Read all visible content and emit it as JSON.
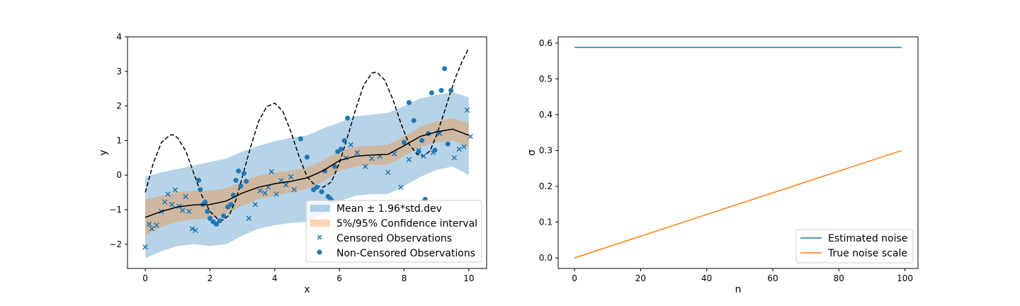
{
  "chart_data": [
    {
      "type": "scatter",
      "title": "",
      "xlabel": "x",
      "ylabel": "y",
      "xlim": [
        -0.55,
        10.55
      ],
      "ylim": [
        -2.7,
        4.0
      ],
      "xticks": [
        0,
        2,
        4,
        6,
        8,
        10
      ],
      "xtick_labels": [
        "0",
        "2",
        "4",
        "6",
        "8",
        "10"
      ],
      "yticks": [
        -2,
        -1,
        0,
        1,
        2,
        3,
        4
      ],
      "ytick_labels": [
        "−2",
        "−1",
        "0",
        "1",
        "2",
        "3",
        "4"
      ],
      "grid": false,
      "legend": {
        "position": "lower-right",
        "entries": [
          {
            "label": "Mean ± 1.96*std.dev",
            "kind": "patch",
            "color": "#1f77b4"
          },
          {
            "label": "5%/95% Confidence interval",
            "kind": "patch",
            "color": "#ff7f0e"
          },
          {
            "label": "Censored Observations",
            "kind": "x",
            "color": "#1f77b4"
          },
          {
            "label": "Non-Censored Observations",
            "kind": "dot",
            "color": "#1f77b4"
          }
        ]
      },
      "x_grid": [
        0,
        0.5,
        1,
        1.5,
        2,
        2.5,
        3,
        3.5,
        4,
        4.5,
        5,
        5.5,
        6,
        6.5,
        7,
        7.5,
        8,
        8.5,
        9,
        9.5,
        10
      ],
      "mean": [
        -1.22,
        -1.05,
        -0.92,
        -0.86,
        -0.85,
        -0.75,
        -0.52,
        -0.35,
        -0.25,
        -0.18,
        -0.08,
        0.13,
        0.42,
        0.55,
        0.58,
        0.6,
        0.85,
        1.12,
        1.25,
        1.33,
        1.15
      ],
      "band_outer_upper": [
        -0.05,
        0.08,
        0.18,
        0.28,
        0.38,
        0.48,
        0.68,
        0.85,
        0.98,
        1.08,
        1.15,
        1.35,
        1.52,
        1.7,
        1.75,
        1.8,
        2.0,
        2.22,
        2.32,
        2.4,
        2.25
      ],
      "band_outer_lower": [
        -2.4,
        -2.2,
        -2.05,
        -2.0,
        -2.05,
        -2.0,
        -1.75,
        -1.55,
        -1.45,
        -1.38,
        -1.35,
        -1.12,
        -0.75,
        -0.6,
        -0.55,
        -0.55,
        -0.32,
        -0.05,
        0.15,
        0.25,
        0.0
      ],
      "band_inner_upper": [
        -0.7,
        -0.6,
        -0.5,
        -0.45,
        -0.45,
        -0.38,
        -0.18,
        -0.02,
        0.07,
        0.13,
        0.22,
        0.43,
        0.7,
        0.82,
        0.85,
        0.88,
        1.12,
        1.4,
        1.55,
        1.65,
        1.5
      ],
      "band_inner_lower": [
        -1.75,
        -1.5,
        -1.35,
        -1.28,
        -1.25,
        -1.13,
        -0.88,
        -0.7,
        -0.58,
        -0.5,
        -0.4,
        -0.18,
        0.12,
        0.25,
        0.3,
        0.3,
        0.55,
        0.82,
        0.95,
        1.0,
        0.8
      ],
      "true_function_x": [
        0,
        0.25,
        0.5,
        0.75,
        0.85,
        1,
        1.25,
        1.5,
        1.75,
        2,
        2.25,
        2.4,
        2.6,
        2.8,
        3,
        3.25,
        3.5,
        3.75,
        4,
        4.25,
        4.5,
        4.75,
        5,
        5.25,
        5.5,
        5.75,
        6,
        6.25,
        6.5,
        6.75,
        7,
        7.15,
        7.4,
        7.65,
        7.9,
        8.15,
        8.4,
        8.6,
        8.8,
        9.0,
        9.2,
        9.4,
        9.6,
        9.8,
        10
      ],
      "true_function_y": [
        -0.5,
        0.35,
        0.95,
        1.15,
        1.17,
        1.08,
        0.7,
        0.05,
        -0.6,
        -1.05,
        -1.28,
        -1.3,
        -1.15,
        -0.72,
        -0.05,
        0.8,
        1.55,
        1.98,
        2.08,
        1.85,
        1.25,
        0.55,
        -0.05,
        -0.3,
        -0.35,
        -0.2,
        0.35,
        1.1,
        1.9,
        2.6,
        2.95,
        2.98,
        2.75,
        2.2,
        1.5,
        0.9,
        0.6,
        0.55,
        0.7,
        1.15,
        1.7,
        2.3,
        2.85,
        3.3,
        3.68
      ],
      "censored_points": {
        "x": [
          0.0,
          0.12,
          0.2,
          0.35,
          0.5,
          0.6,
          0.7,
          0.82,
          0.92,
          1.05,
          1.15,
          1.25,
          1.35,
          1.45,
          1.55,
          3.2,
          3.4,
          3.55,
          3.7,
          3.8,
          3.9,
          4.05,
          4.2,
          4.35,
          4.5,
          4.6,
          5.7,
          6.2,
          6.35,
          6.55,
          6.8,
          7.0,
          7.25,
          7.5,
          7.7,
          7.9,
          8.15,
          8.45,
          8.6,
          8.9,
          9.1,
          9.55,
          9.7,
          9.85,
          9.95,
          10.05
        ],
        "y": [
          -2.08,
          -1.42,
          -1.55,
          -1.45,
          -1.05,
          -0.78,
          -0.55,
          -0.85,
          -0.43,
          -0.9,
          -1.02,
          -0.62,
          -1.05,
          -1.55,
          -1.6,
          -1.25,
          -0.85,
          -0.45,
          -0.52,
          -0.35,
          0.1,
          -0.55,
          -0.15,
          -0.28,
          -0.05,
          -0.42,
          -0.68,
          0.5,
          0.88,
          0.65,
          0.25,
          0.48,
          0.55,
          0.08,
          0.62,
          -0.35,
          0.45,
          0.72,
          0.55,
          0.65,
          1.2,
          0.5,
          0.75,
          0.82,
          1.88,
          1.12
        ]
      },
      "noncensored_points": {
        "x": [
          1.65,
          1.7,
          1.78,
          1.85,
          1.92,
          2.0,
          2.1,
          2.2,
          2.3,
          2.42,
          2.55,
          2.65,
          2.72,
          2.8,
          2.88,
          2.95,
          3.05,
          3.12,
          4.8,
          5.0,
          5.2,
          5.3,
          5.45,
          5.55,
          5.65,
          5.75,
          5.85,
          5.95,
          6.05,
          6.15,
          6.25,
          8.0,
          8.15,
          8.3,
          8.45,
          8.55,
          8.65,
          8.75,
          8.85,
          8.95,
          9.05,
          9.15,
          9.25,
          9.35,
          9.45
        ],
        "y": [
          -0.15,
          -0.42,
          -0.85,
          -0.78,
          -1.05,
          -1.25,
          -1.35,
          -1.42,
          -1.32,
          -1.18,
          -0.92,
          -0.85,
          -0.58,
          -0.15,
          0.12,
          -0.32,
          0.05,
          -0.18,
          1.05,
          0.52,
          -0.42,
          -0.35,
          -0.48,
          0.12,
          -0.62,
          -0.72,
          0.25,
          0.68,
          0.75,
          1.0,
          1.65,
          0.95,
          2.1,
          1.58,
          0.68,
          1.0,
          -0.7,
          1.2,
          2.38,
          0.72,
          1.25,
          2.45,
          3.08,
          0.9,
          2.45
        ]
      },
      "colors": {
        "outer_band": "#1f77b4",
        "inner_band": "#ff7f0e",
        "mean_line": "#000000",
        "true_function": "#000000",
        "points": "#1f77b4"
      }
    },
    {
      "type": "line",
      "title": "",
      "xlabel": "n",
      "ylabel": "σ",
      "xlim": [
        -4.95,
        103.95
      ],
      "ylim": [
        -0.0294,
        0.6174
      ],
      "xticks": [
        0,
        20,
        40,
        60,
        80,
        100
      ],
      "xtick_labels": [
        "0",
        "20",
        "40",
        "60",
        "80",
        "100"
      ],
      "yticks": [
        0.0,
        0.1,
        0.2,
        0.3,
        0.4,
        0.5,
        0.6
      ],
      "ytick_labels": [
        "0.0",
        "0.1",
        "0.2",
        "0.3",
        "0.4",
        "0.5",
        "0.6"
      ],
      "grid": false,
      "legend": {
        "position": "lower-right"
      },
      "series": [
        {
          "name": "Estimated noise",
          "color": "#1f77b4",
          "x": [
            0,
            99
          ],
          "values": [
            0.588,
            0.588
          ]
        },
        {
          "name": "True noise scale",
          "color": "#ff7f0e",
          "x": [
            0,
            99
          ],
          "values": [
            0.0,
            0.3
          ]
        }
      ]
    }
  ]
}
